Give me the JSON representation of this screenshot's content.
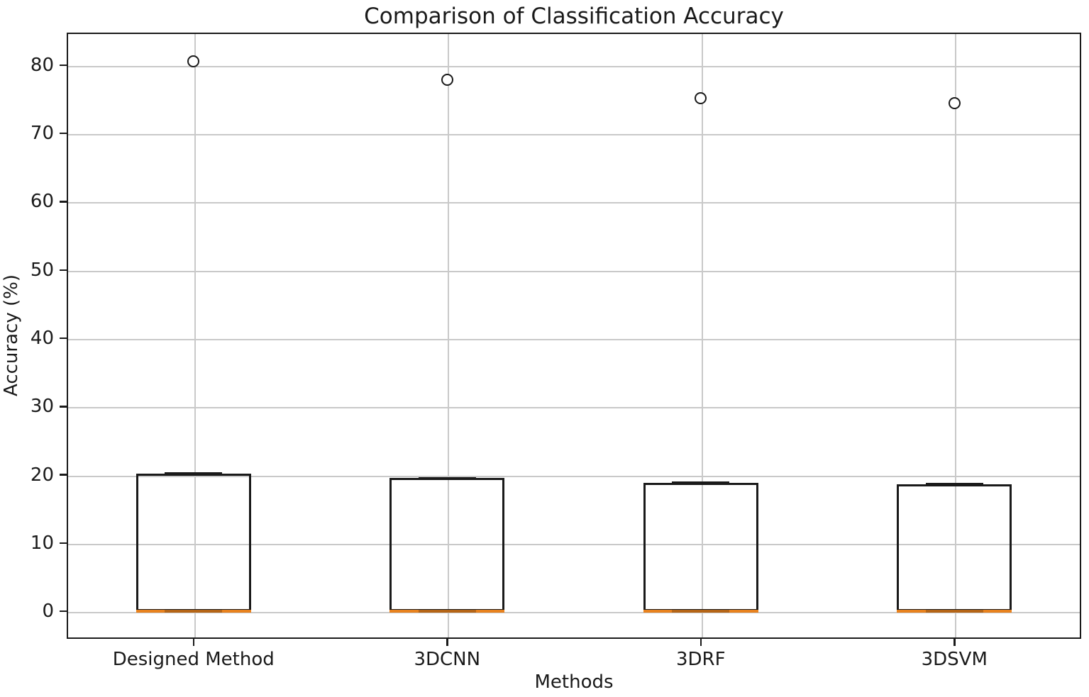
{
  "chart_data": {
    "type": "box",
    "title": "Comparison of Classification Accuracy",
    "xlabel": "Methods",
    "ylabel": "Accuracy (%)",
    "categories": [
      "Designed Method",
      "3DCNN",
      "3DRF",
      "3DSVM"
    ],
    "series": [
      {
        "name": "Designed Method",
        "q1": 0,
        "median": 0,
        "q3": 20.2,
        "whisker_low": 0,
        "whisker_high": 20.2,
        "outliers": [
          80.6
        ]
      },
      {
        "name": "3DCNN",
        "q1": 0,
        "median": 0,
        "q3": 19.5,
        "whisker_low": 0,
        "whisker_high": 19.5,
        "outliers": [
          77.9
        ]
      },
      {
        "name": "3DRF",
        "q1": 0,
        "median": 0,
        "q3": 18.8,
        "whisker_low": 0,
        "whisker_high": 18.8,
        "outliers": [
          75.2
        ]
      },
      {
        "name": "3DSVM",
        "q1": 0,
        "median": 0,
        "q3": 18.6,
        "whisker_low": 0,
        "whisker_high": 18.6,
        "outliers": [
          74.4
        ]
      }
    ],
    "yticks": [
      0,
      10,
      20,
      30,
      40,
      50,
      60,
      70,
      80
    ],
    "ylim": [
      -4.03,
      84.77
    ],
    "grid": true,
    "legend": null,
    "colors": {
      "box_edge": "#1a1a1a",
      "median": "#e8821e",
      "grid": "#c9c9c9",
      "flier_edge": "#1a1a1a",
      "background": "#ffffff"
    }
  }
}
